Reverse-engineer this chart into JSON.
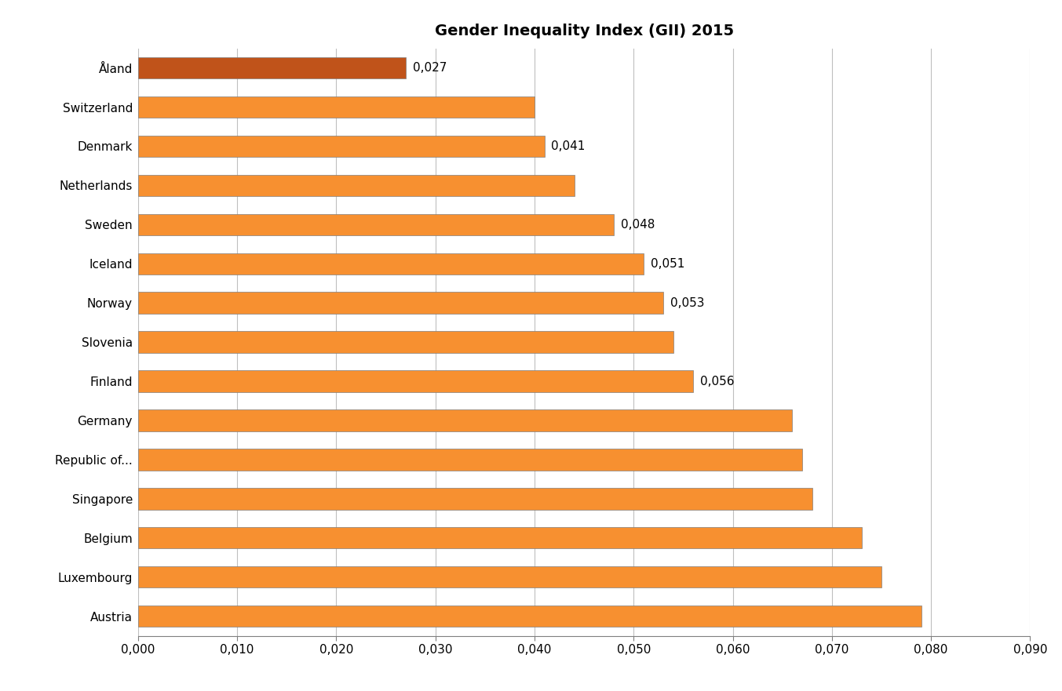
{
  "title": "Gender Inequality Index (GII) 2015",
  "categories": [
    "Austria",
    "Luxembourg",
    "Belgium",
    "Singapore",
    "Republic of...",
    "Germany",
    "Finland",
    "Slovenia",
    "Norway",
    "Iceland",
    "Sweden",
    "Netherlands",
    "Denmark",
    "Switzerland",
    "Åland"
  ],
  "values": [
    0.079,
    0.075,
    0.073,
    0.068,
    0.067,
    0.066,
    0.056,
    0.054,
    0.053,
    0.051,
    0.048,
    0.044,
    0.041,
    0.04,
    0.027
  ],
  "bar_colors": [
    "#f79030",
    "#f79030",
    "#f79030",
    "#f79030",
    "#f79030",
    "#f79030",
    "#f79030",
    "#f79030",
    "#f79030",
    "#f79030",
    "#f79030",
    "#f79030",
    "#f79030",
    "#f79030",
    "#c0531a"
  ],
  "labels_to_show": {
    "Åland": "0,027",
    "Denmark": "0,041",
    "Sweden": "0,048",
    "Iceland": "0,051",
    "Norway": "0,053",
    "Finland": "0,056"
  },
  "xlim": [
    0,
    0.09
  ],
  "xticks": [
    0.0,
    0.01,
    0.02,
    0.03,
    0.04,
    0.05,
    0.06,
    0.07,
    0.08,
    0.09
  ],
  "background_color": "#ffffff",
  "grid_color": "#bfbfbf",
  "title_fontsize": 14,
  "label_fontsize": 11,
  "tick_fontsize": 11,
  "bar_height": 0.55,
  "bar_edge_color": "#7f7f7f",
  "bar_edge_width": 0.5
}
